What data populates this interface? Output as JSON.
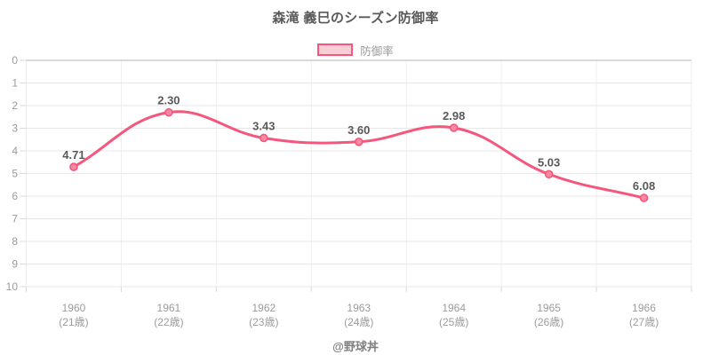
{
  "title": "森滝 義巳のシーズン防御率",
  "legend": {
    "items": [
      {
        "label": "防御率"
      }
    ]
  },
  "watermark": "@野球丼",
  "colors": {
    "line": "#f5567b",
    "marker_fill": "#f78ba3",
    "legend_fill": "#fbcdd7",
    "grid": "#e7e7e7",
    "grid_zero": "#b3b3b3",
    "grid_vertical": "#efefef",
    "axis_line": "#ececec",
    "tick": "#d9d9d9",
    "title_text": "#595959",
    "point_label_text": "#595959",
    "axis_text": "#9b9b9b",
    "watermark_text": "#7f7f7f"
  },
  "chart_data": {
    "type": "line",
    "title": "森滝 義巳のシーズン防御率",
    "categories": [
      "1960",
      "1961",
      "1962",
      "1963",
      "1964",
      "1965",
      "1966"
    ],
    "category_sublabels": [
      "(21歳)",
      "(22歳)",
      "(23歳)",
      "(24歳)",
      "(25歳)",
      "(26歳)",
      "(27歳)"
    ],
    "series": [
      {
        "name": "防御率",
        "values": [
          4.71,
          2.3,
          3.43,
          3.6,
          2.98,
          5.03,
          6.08
        ]
      }
    ],
    "point_labels": [
      "4.71",
      "2.30",
      "3.43",
      "3.60",
      "2.98",
      "5.03",
      "6.08"
    ],
    "xlabel": "",
    "ylabel": "",
    "ylim": [
      0,
      10
    ],
    "y_ticks": [
      0,
      1,
      2,
      3,
      4,
      5,
      6,
      7,
      8,
      9,
      10
    ],
    "y_axis_inverted": true,
    "grid": true,
    "line_tension": 0.4,
    "legend_position": "top"
  }
}
